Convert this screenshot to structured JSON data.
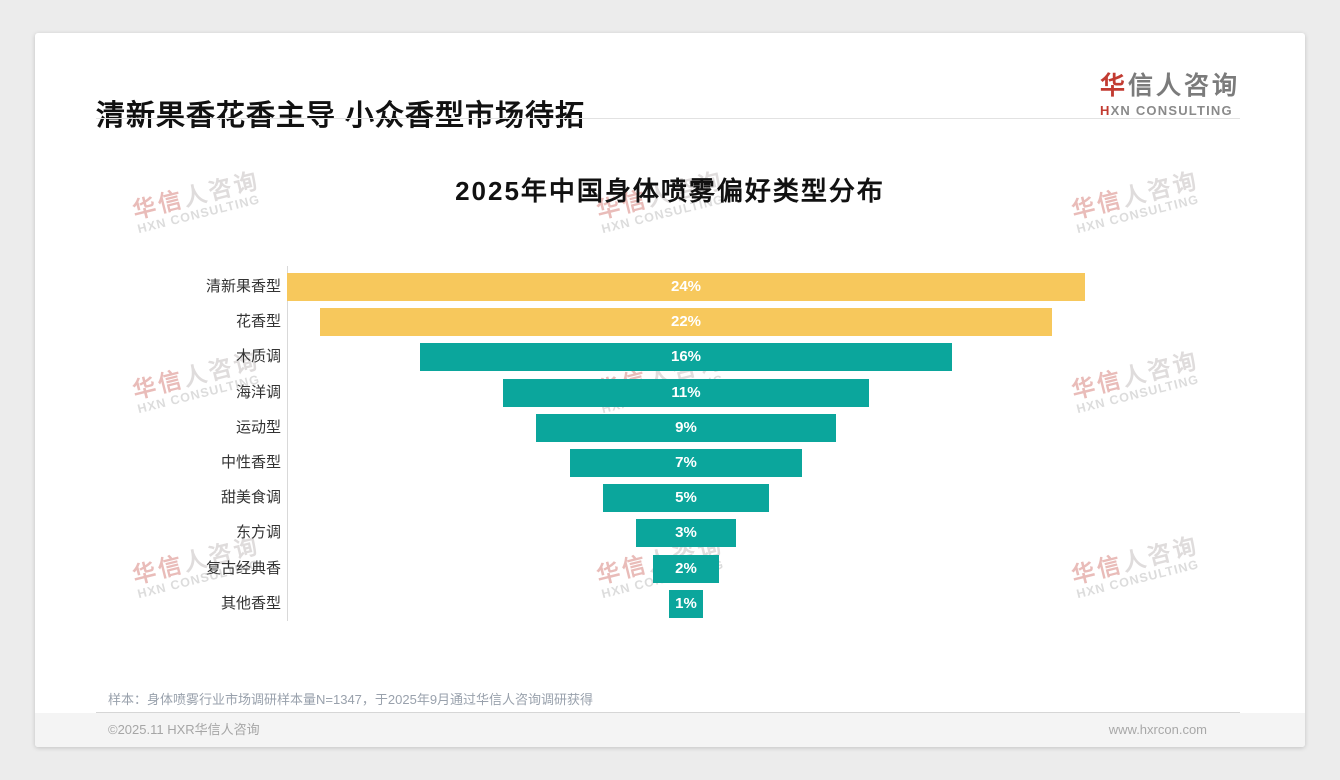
{
  "header": {
    "title": "清新果香花香主导 小众香型市场待拓",
    "logo": {
      "cn_accent": "华",
      "cn_rest": "信人咨询",
      "en_accent": "H",
      "en_rest": "XN CONSULTING"
    }
  },
  "watermark": {
    "cn_accent": "华信",
    "cn_rest": "人咨询",
    "en": "HXN CONSULTING"
  },
  "chart_data": {
    "type": "bar",
    "subtype": "centered-funnel-horizontal",
    "title": "2025年中国身体喷雾偏好类型分布",
    "categories": [
      "清新果香型",
      "花香型",
      "木质调",
      "海洋调",
      "运动型",
      "中性香型",
      "甜美食调",
      "东方调",
      "复古经典香",
      "其他香型"
    ],
    "values": [
      24,
      22,
      16,
      11,
      9,
      7,
      5,
      3,
      2,
      1
    ],
    "bar_labels": [
      "24%",
      "22%",
      "16%",
      "11%",
      "9%",
      "7%",
      "5%",
      "3%",
      "2%",
      "1%"
    ],
    "unit": "%",
    "xlim": [
      0,
      24
    ],
    "grid": false,
    "legend": false,
    "value_label_position": "center",
    "highlight_first_n": 2,
    "colors": {
      "highlight": "#F7C85C",
      "default": "#0BA69C",
      "value_text": "#ffffff"
    }
  },
  "footnote": "样本：身体喷雾行业市场调研样本量N=1347，于2025年9月通过华信人咨询调研获得",
  "footer": {
    "copyright": "©2025.11 HXR华信人咨询",
    "website": "www.hxrcon.com"
  }
}
